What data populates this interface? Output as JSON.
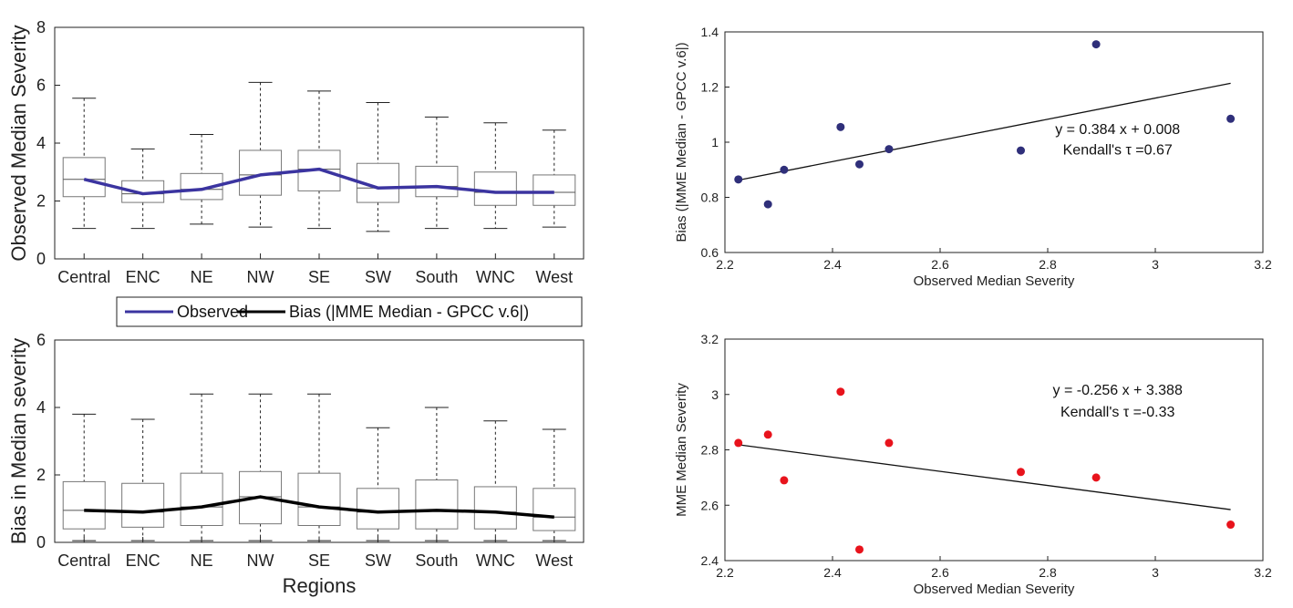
{
  "legend": {
    "observed": "Observed",
    "bias": "Bias (|MME Median - GPCC v.6|)"
  },
  "colors": {
    "observed_line": "#3b34a0",
    "bias_line": "#000000",
    "blue_points": "#2f2f7a",
    "red_points": "#e8131c",
    "box": "#777777"
  },
  "chart_data": [
    {
      "id": "top-left",
      "type": "box",
      "ylabel": "Observed Median Severity",
      "xlabel": "",
      "categories": [
        "Central",
        "ENC",
        "NE",
        "NW",
        "SE",
        "SW",
        "South",
        "WNC",
        "West"
      ],
      "ylim": [
        0,
        8
      ],
      "yticks": [
        "0",
        "2",
        "4",
        "6",
        "8"
      ],
      "boxes": [
        {
          "q1": 2.15,
          "median": 2.75,
          "q3": 3.5,
          "whisker_low": 1.05,
          "whisker_high": 5.55
        },
        {
          "q1": 1.95,
          "median": 2.25,
          "q3": 2.7,
          "whisker_low": 1.05,
          "whisker_high": 3.8
        },
        {
          "q1": 2.05,
          "median": 2.4,
          "q3": 2.95,
          "whisker_low": 1.2,
          "whisker_high": 4.3
        },
        {
          "q1": 2.2,
          "median": 2.9,
          "q3": 3.75,
          "whisker_low": 1.1,
          "whisker_high": 6.1
        },
        {
          "q1": 2.35,
          "median": 3.1,
          "q3": 3.75,
          "whisker_low": 1.05,
          "whisker_high": 5.8
        },
        {
          "q1": 1.95,
          "median": 2.45,
          "q3": 3.3,
          "whisker_low": 0.95,
          "whisker_high": 5.4
        },
        {
          "q1": 2.15,
          "median": 2.5,
          "q3": 3.2,
          "whisker_low": 1.05,
          "whisker_high": 4.9
        },
        {
          "q1": 1.85,
          "median": 2.3,
          "q3": 3.0,
          "whisker_low": 1.05,
          "whisker_high": 4.7
        },
        {
          "q1": 1.85,
          "median": 2.3,
          "q3": 2.9,
          "whisker_low": 1.1,
          "whisker_high": 4.45
        }
      ],
      "series": [
        {
          "name": "Observed",
          "values": [
            2.75,
            2.25,
            2.4,
            2.9,
            3.1,
            2.45,
            2.5,
            2.3,
            2.3
          ]
        }
      ]
    },
    {
      "id": "bottom-left",
      "type": "box",
      "ylabel": "Bias in Median severity",
      "xlabel": "Regions",
      "categories": [
        "Central",
        "ENC",
        "NE",
        "NW",
        "SE",
        "SW",
        "South",
        "WNC",
        "West"
      ],
      "ylim": [
        0,
        6
      ],
      "yticks": [
        "0",
        "2",
        "4",
        "6"
      ],
      "boxes": [
        {
          "q1": 0.4,
          "median": 0.95,
          "q3": 1.8,
          "whisker_low": 0.05,
          "whisker_high": 3.8
        },
        {
          "q1": 0.45,
          "median": 0.9,
          "q3": 1.75,
          "whisker_low": 0.05,
          "whisker_high": 3.65
        },
        {
          "q1": 0.5,
          "median": 1.05,
          "q3": 2.05,
          "whisker_low": 0.05,
          "whisker_high": 4.4
        },
        {
          "q1": 0.55,
          "median": 1.35,
          "q3": 2.1,
          "whisker_low": 0.05,
          "whisker_high": 4.4
        },
        {
          "q1": 0.5,
          "median": 1.05,
          "q3": 2.05,
          "whisker_low": 0.05,
          "whisker_high": 4.4
        },
        {
          "q1": 0.4,
          "median": 0.9,
          "q3": 1.6,
          "whisker_low": 0.05,
          "whisker_high": 3.4
        },
        {
          "q1": 0.4,
          "median": 0.95,
          "q3": 1.85,
          "whisker_low": 0.05,
          "whisker_high": 4.0
        },
        {
          "q1": 0.4,
          "median": 0.9,
          "q3": 1.65,
          "whisker_low": 0.05,
          "whisker_high": 3.6
        },
        {
          "q1": 0.35,
          "median": 0.75,
          "q3": 1.6,
          "whisker_low": 0.05,
          "whisker_high": 3.35
        }
      ],
      "series": [
        {
          "name": "Bias (|MME Median - GPCC v.6|)",
          "values": [
            0.95,
            0.9,
            1.05,
            1.35,
            1.05,
            0.9,
            0.95,
            0.9,
            0.75
          ]
        }
      ]
    },
    {
      "id": "top-right",
      "type": "scatter",
      "xlabel": "Observed Median Severity",
      "ylabel": "Bias (|MME Median - GPCC v.6|)",
      "xlim": [
        2.2,
        3.2
      ],
      "ylim": [
        0.6,
        1.4
      ],
      "xticks": [
        "2.2",
        "2.4",
        "2.6",
        "2.8",
        "3",
        "3.2"
      ],
      "yticks": [
        "0.6",
        "0.8",
        "1",
        "1.2",
        "1.4"
      ],
      "points": [
        {
          "x": 2.225,
          "y": 0.865
        },
        {
          "x": 2.28,
          "y": 0.775
        },
        {
          "x": 2.31,
          "y": 0.9
        },
        {
          "x": 2.415,
          "y": 1.055
        },
        {
          "x": 2.45,
          "y": 0.92
        },
        {
          "x": 2.505,
          "y": 0.975
        },
        {
          "x": 2.75,
          "y": 0.97
        },
        {
          "x": 2.89,
          "y": 1.355
        },
        {
          "x": 3.14,
          "y": 1.085
        }
      ],
      "fit": {
        "slope": 0.384,
        "intercept": 0.008,
        "x_from": 2.225,
        "x_to": 3.14
      },
      "annotation_line1": "y = 0.384 x + 0.008",
      "annotation_line2": "Kendall's τ =0.67"
    },
    {
      "id": "bottom-right",
      "type": "scatter",
      "xlabel": "Observed Median Severity",
      "ylabel": "MME Median Severity",
      "xlim": [
        2.2,
        3.2
      ],
      "ylim": [
        2.4,
        3.2
      ],
      "xticks": [
        "2.2",
        "2.4",
        "2.6",
        "2.8",
        "3",
        "3.2"
      ],
      "yticks": [
        "2.4",
        "2.6",
        "2.8",
        "3",
        "3.2"
      ],
      "points": [
        {
          "x": 2.225,
          "y": 2.825
        },
        {
          "x": 2.28,
          "y": 2.855
        },
        {
          "x": 2.31,
          "y": 2.69
        },
        {
          "x": 2.415,
          "y": 3.01
        },
        {
          "x": 2.45,
          "y": 2.44
        },
        {
          "x": 2.505,
          "y": 2.825
        },
        {
          "x": 2.75,
          "y": 2.72
        },
        {
          "x": 2.89,
          "y": 2.7
        },
        {
          "x": 3.14,
          "y": 2.53
        }
      ],
      "fit": {
        "slope": -0.256,
        "intercept": 3.388,
        "x_from": 2.225,
        "x_to": 3.14
      },
      "annotation_line1": "y = -0.256 x + 3.388",
      "annotation_line2": "Kendall's τ =-0.33"
    }
  ]
}
